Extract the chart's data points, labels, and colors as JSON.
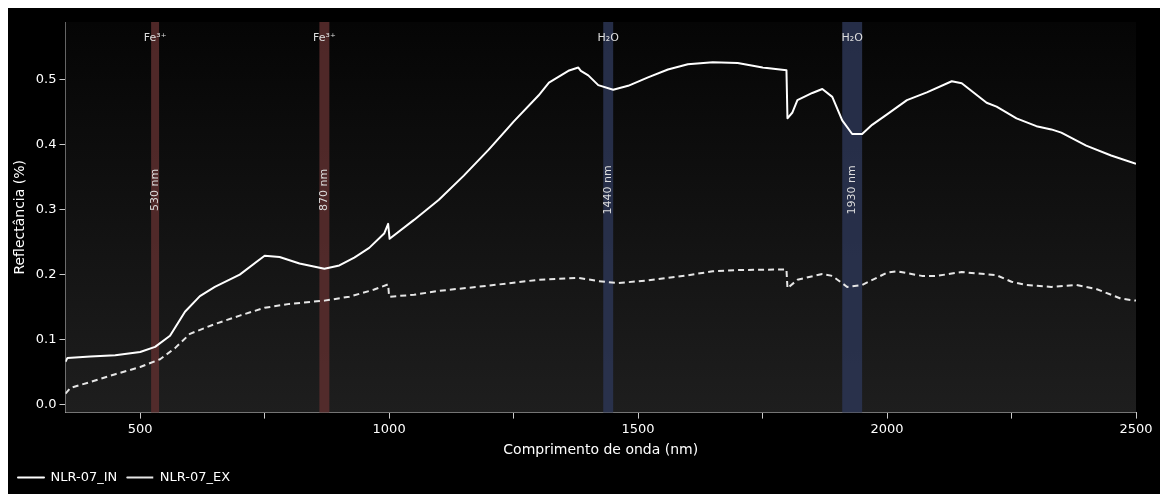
{
  "chart_data": {
    "type": "line",
    "xlabel": "Comprimento de onda (nm)",
    "ylabel": "Reflectância (%)",
    "xlim": [
      350,
      2500
    ],
    "ylim": [
      -0.012,
      0.588
    ],
    "xticks": [
      {
        "value": 500,
        "label": "500"
      },
      {
        "value": 750,
        "label": null
      },
      {
        "value": 1000,
        "label": "1000"
      },
      {
        "value": 1250,
        "label": null
      },
      {
        "value": 1500,
        "label": "1500"
      },
      {
        "value": 1750,
        "label": null
      },
      {
        "value": 2000,
        "label": "2000"
      },
      {
        "value": 2250,
        "label": null
      },
      {
        "value": 2500,
        "label": "2500"
      }
    ],
    "yticks": [
      {
        "value": 0,
        "label": "0.0"
      },
      {
        "value": 0.1,
        "label": "0.1"
      },
      {
        "value": 0.2,
        "label": "0.2"
      },
      {
        "value": 0.3,
        "label": "0.3"
      },
      {
        "value": 0.4,
        "label": "0.4"
      },
      {
        "value": 0.5,
        "label": "0.5"
      }
    ],
    "grid": false,
    "legend": "bottom left",
    "marker": "none",
    "series": [
      {
        "name": "NLR-07_IN",
        "color": "#ffffff",
        "line_style": "solid",
        "x": [
          350,
          354,
          400,
          450,
          500,
          530,
          560,
          590,
          620,
          650,
          700,
          750,
          780,
          820,
          870,
          900,
          930,
          960,
          990,
          998,
          1001,
          1050,
          1100,
          1150,
          1200,
          1250,
          1300,
          1321,
          1360,
          1380,
          1385,
          1400,
          1420,
          1450,
          1480,
          1520,
          1560,
          1600,
          1650,
          1700,
          1750,
          1798,
          1800,
          1810,
          1820,
          1850,
          1870,
          1890,
          1910,
          1930,
          1950,
          1970,
          2000,
          2040,
          2080,
          2130,
          2150,
          2200,
          2220,
          2260,
          2300,
          2330,
          2350,
          2400,
          2450,
          2500
        ],
        "values": [
          0.066,
          0.072,
          0.074,
          0.076,
          0.081,
          0.089,
          0.106,
          0.143,
          0.167,
          0.181,
          0.2,
          0.229,
          0.227,
          0.217,
          0.209,
          0.214,
          0.226,
          0.241,
          0.263,
          0.278,
          0.255,
          0.284,
          0.315,
          0.352,
          0.392,
          0.435,
          0.475,
          0.495,
          0.513,
          0.518,
          0.513,
          0.506,
          0.491,
          0.484,
          0.49,
          0.503,
          0.515,
          0.523,
          0.526,
          0.525,
          0.518,
          0.514,
          0.44,
          0.449,
          0.468,
          0.479,
          0.485,
          0.473,
          0.437,
          0.416,
          0.416,
          0.43,
          0.446,
          0.468,
          0.48,
          0.497,
          0.494,
          0.464,
          0.458,
          0.44,
          0.428,
          0.423,
          0.418,
          0.398,
          0.383,
          0.37
        ]
      },
      {
        "name": "NLR-07_EX",
        "color": "#e6e6e6",
        "line_style": "dashed",
        "x": [
          350,
          360,
          400,
          450,
          500,
          540,
          570,
          600,
          650,
          700,
          750,
          800,
          870,
          920,
          970,
          998,
          1000,
          1050,
          1100,
          1200,
          1300,
          1380,
          1420,
          1460,
          1520,
          1600,
          1650,
          1700,
          1798,
          1800,
          1820,
          1870,
          1890,
          1920,
          1950,
          2000,
          2020,
          2070,
          2100,
          2150,
          2220,
          2250,
          2280,
          2330,
          2380,
          2420,
          2470,
          2500
        ],
        "values": [
          0.017,
          0.026,
          0.035,
          0.047,
          0.058,
          0.07,
          0.087,
          0.109,
          0.124,
          0.137,
          0.149,
          0.155,
          0.16,
          0.166,
          0.177,
          0.185,
          0.166,
          0.169,
          0.175,
          0.183,
          0.192,
          0.195,
          0.19,
          0.187,
          0.191,
          0.199,
          0.205,
          0.207,
          0.208,
          0.179,
          0.192,
          0.201,
          0.198,
          0.181,
          0.184,
          0.203,
          0.205,
          0.198,
          0.198,
          0.204,
          0.199,
          0.189,
          0.184,
          0.181,
          0.184,
          0.178,
          0.163,
          0.16
        ]
      }
    ],
    "bands": [
      {
        "axis": "x",
        "from": 522,
        "to": 538,
        "label": "530 nm",
        "color": "#5c2e2e"
      },
      {
        "axis": "x",
        "from": 860,
        "to": 880,
        "label": "870 nm",
        "color": "#5c2e2e"
      },
      {
        "axis": "x",
        "from": 1430,
        "to": 1450,
        "label": "1440 nm",
        "color": "#2b3554"
      },
      {
        "axis": "x",
        "from": 1910,
        "to": 1950,
        "label": "1930 nm",
        "color": "#2b3554"
      }
    ],
    "annotations": [
      "Fe³⁺",
      "Fe³⁺",
      "H₂O",
      "H₂O"
    ]
  }
}
